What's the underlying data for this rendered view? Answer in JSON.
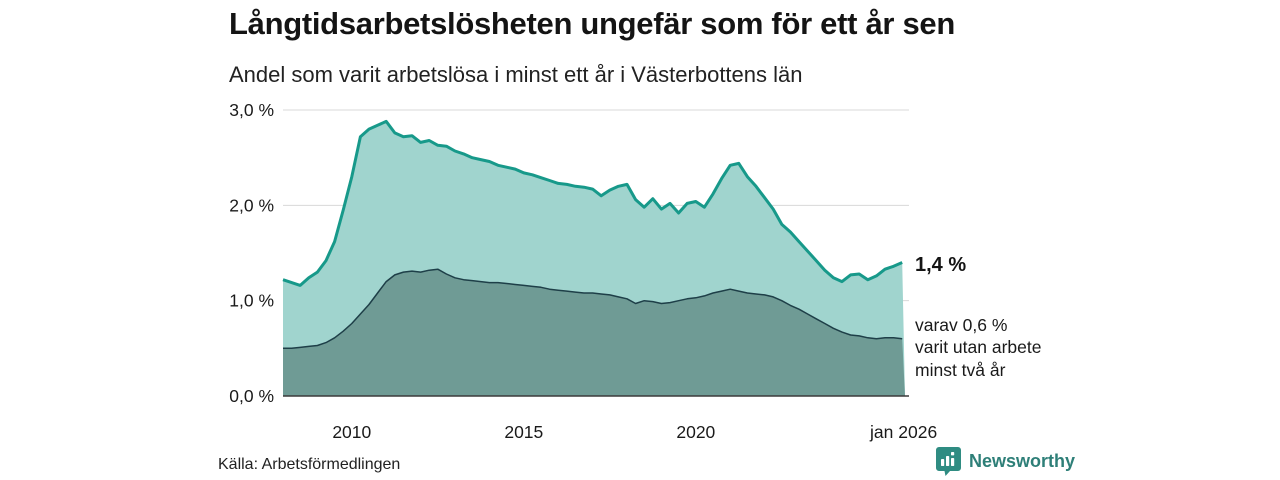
{
  "header": {
    "title": "Långtidsarbetslösheten ungefär som för ett år sen",
    "subtitle": "Andel som varit arbetslösa i minst ett år i Västerbottens län"
  },
  "annotations": {
    "total_label": "1,4 %",
    "sub_lines": [
      "varav 0,6 %",
      "varit utan arbete",
      "minst två år"
    ]
  },
  "footer": {
    "source": "Källa: Arbetsförmedlingen",
    "logo_text": "Newsworthy",
    "logo_icon": "bar-chart-speech-bubble",
    "logo_color": "#2f8c82"
  },
  "colors": {
    "line_one_year": "#17998a",
    "fill_one_year": "#a0d4ce",
    "line_two_years": "#1e3f48",
    "fill_two_years": "#6f9b95",
    "grid": "#d8d8d8",
    "axis": "#3b3b3b",
    "text": "#1a1a1a"
  },
  "chart_data": {
    "type": "area",
    "title": "Långtidsarbetslösheten ungefär som för ett år sen",
    "subtitle": "Andel som varit arbetslösa i minst ett år i Västerbottens län",
    "source": "Källa: Arbetsförmedlingen",
    "unit": "%",
    "grid": true,
    "legend_position": "end-labels",
    "xlim": [
      2008,
      2026.08
    ],
    "ylim": [
      0,
      3
    ],
    "y_ticks": [
      {
        "v": 0,
        "label": "0,0 %"
      },
      {
        "v": 1,
        "label": "1,0 %"
      },
      {
        "v": 2,
        "label": "2,0 %"
      },
      {
        "v": 3,
        "label": "3,0 %"
      }
    ],
    "x_ticks": [
      {
        "v": 2010,
        "label": "2010"
      },
      {
        "v": 2015,
        "label": "2015"
      },
      {
        "v": 2020,
        "label": "2020"
      },
      {
        "v": 2026.04,
        "label": "jan 2026"
      }
    ],
    "x": [
      2008.0,
      2008.25,
      2008.5,
      2008.75,
      2009.0,
      2009.25,
      2009.5,
      2009.75,
      2010.0,
      2010.25,
      2010.5,
      2010.75,
      2011.0,
      2011.25,
      2011.5,
      2011.75,
      2012.0,
      2012.25,
      2012.5,
      2012.75,
      2013.0,
      2013.25,
      2013.5,
      2013.75,
      2014.0,
      2014.25,
      2014.5,
      2014.75,
      2015.0,
      2015.25,
      2015.5,
      2015.75,
      2016.0,
      2016.25,
      2016.5,
      2016.75,
      2017.0,
      2017.25,
      2017.5,
      2017.75,
      2018.0,
      2018.25,
      2018.5,
      2018.75,
      2019.0,
      2019.25,
      2019.5,
      2019.75,
      2020.0,
      2020.25,
      2020.5,
      2020.75,
      2021.0,
      2021.25,
      2021.5,
      2021.75,
      2022.0,
      2022.25,
      2022.5,
      2022.75,
      2023.0,
      2023.25,
      2023.5,
      2023.75,
      2024.0,
      2024.25,
      2024.5,
      2024.75,
      2025.0,
      2025.25,
      2025.5,
      2025.75,
      2026.0
    ],
    "series": [
      {
        "name": "Andel som varit arbetslösa i minst ett år",
        "end_label": "1,4 %",
        "end_value": 1.4,
        "line_color": "#17998a",
        "fill_color": "#a0d4ce",
        "values": [
          1.22,
          1.19,
          1.16,
          1.24,
          1.3,
          1.42,
          1.62,
          1.95,
          2.3,
          2.72,
          2.8,
          2.84,
          2.88,
          2.76,
          2.72,
          2.73,
          2.66,
          2.68,
          2.63,
          2.62,
          2.57,
          2.54,
          2.5,
          2.48,
          2.46,
          2.42,
          2.4,
          2.38,
          2.34,
          2.32,
          2.29,
          2.26,
          2.23,
          2.22,
          2.2,
          2.19,
          2.17,
          2.1,
          2.16,
          2.2,
          2.22,
          2.06,
          1.98,
          2.07,
          1.96,
          2.02,
          1.92,
          2.02,
          2.04,
          1.98,
          2.12,
          2.28,
          2.42,
          2.44,
          2.3,
          2.2,
          2.08,
          1.96,
          1.8,
          1.72,
          1.62,
          1.52,
          1.42,
          1.32,
          1.24,
          1.2,
          1.27,
          1.28,
          1.22,
          1.26,
          1.33,
          1.36,
          1.4
        ]
      },
      {
        "name": "varav varit utan arbete minst två år",
        "end_label": "varav 0,6 % varit utan arbete minst två år",
        "end_value": 0.6,
        "line_color": "#1e3f48",
        "fill_color": "#6f9b95",
        "values": [
          0.5,
          0.5,
          0.51,
          0.52,
          0.53,
          0.56,
          0.61,
          0.68,
          0.76,
          0.86,
          0.96,
          1.08,
          1.2,
          1.27,
          1.3,
          1.31,
          1.3,
          1.32,
          1.33,
          1.28,
          1.24,
          1.22,
          1.21,
          1.2,
          1.19,
          1.19,
          1.18,
          1.17,
          1.16,
          1.15,
          1.14,
          1.12,
          1.11,
          1.1,
          1.09,
          1.08,
          1.08,
          1.07,
          1.06,
          1.04,
          1.02,
          0.97,
          1.0,
          0.99,
          0.97,
          0.98,
          1.0,
          1.02,
          1.03,
          1.05,
          1.08,
          1.1,
          1.12,
          1.1,
          1.08,
          1.07,
          1.06,
          1.04,
          1.0,
          0.95,
          0.91,
          0.86,
          0.81,
          0.76,
          0.71,
          0.67,
          0.64,
          0.63,
          0.61,
          0.6,
          0.61,
          0.61,
          0.6
        ]
      }
    ]
  }
}
